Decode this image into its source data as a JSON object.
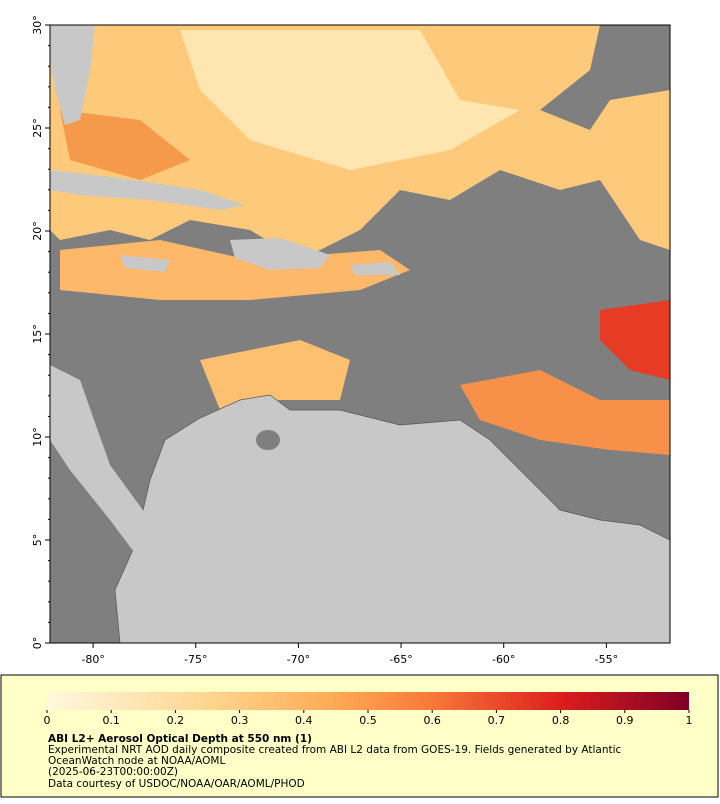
{
  "map": {
    "xlim": [
      -82.1,
      -51.9
    ],
    "ylim": [
      0,
      30
    ],
    "xticks": [
      {
        "value": -80,
        "label": "-80°"
      },
      {
        "value": -75,
        "label": "-75°"
      },
      {
        "value": -70,
        "label": "-70°"
      },
      {
        "value": -65,
        "label": "-65°"
      },
      {
        "value": -60,
        "label": "-60°"
      },
      {
        "value": -55,
        "label": "-55°"
      }
    ],
    "yticks": [
      {
        "value": 0,
        "label": "0°"
      },
      {
        "value": 5,
        "label": "5°"
      },
      {
        "value": 10,
        "label": "10°"
      },
      {
        "value": 15,
        "label": "15°"
      },
      {
        "value": 20,
        "label": "20°"
      },
      {
        "value": 25,
        "label": "25°"
      },
      {
        "value": 30,
        "label": "30°"
      }
    ]
  },
  "colorbar": {
    "range": [
      0,
      1
    ],
    "ticks": [
      0,
      0.1,
      0.2,
      0.3,
      0.4,
      0.5,
      0.6,
      0.7,
      0.8,
      0.9,
      1
    ]
  },
  "caption": {
    "title": "ABI L2+ Aerosol Optical Depth at 550 nm (1)",
    "lines": [
      "Experimental NRT AOD daily composite created from ABI L2 data from GOES-19. Fields generated by Atlantic",
      "OceanWatch node at NOAA/AOML",
      "(2025-06-23T00:00:00Z)",
      "Data courtesy of USDOC/NOAA/OAR/AOML/PHOD"
    ]
  }
}
